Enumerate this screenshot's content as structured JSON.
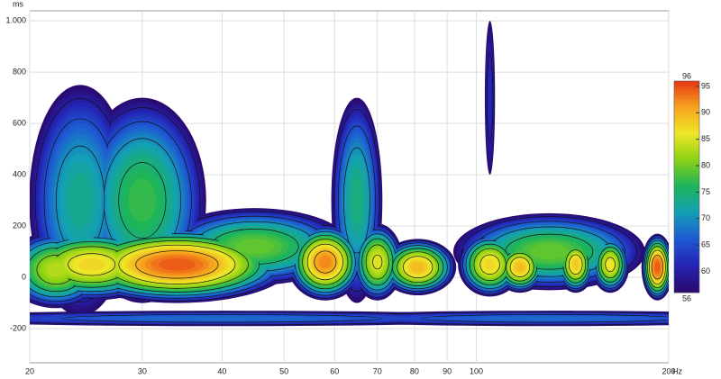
{
  "chart_data": {
    "type": "spectrogram",
    "x_unit": "Hz",
    "y_unit": "ms",
    "xscale": "log",
    "xlim": [
      20,
      200
    ],
    "xticks": [
      20,
      30,
      40,
      50,
      60,
      70,
      80,
      90,
      100,
      200
    ],
    "ylim": [
      -333,
      1039
    ],
    "yticks": [
      -200,
      0,
      200,
      400,
      600,
      800,
      {
        "value": 1000,
        "label": "1.000"
      }
    ],
    "grid": true,
    "zlim": [
      56,
      96
    ],
    "zticks": [
      60,
      65,
      70,
      75,
      80,
      85,
      90,
      95
    ],
    "colorscale": [
      "#2a0a6e",
      "#2424b4",
      "#1e5ad2",
      "#14a0b4",
      "#1eb45a",
      "#8cd214",
      "#f0e628",
      "#f5a01e",
      "#e63214"
    ],
    "contour_step": 5,
    "peaks": {
      "x": [
        40,
        130,
        30,
        24,
        65,
        105,
        22,
        25,
        45,
        130,
        34,
        58,
        70,
        81,
        105,
        117,
        143,
        162,
        192
      ],
      "y": [
        -160,
        -160,
        300,
        300,
        300,
        700,
        30,
        50,
        120,
        100,
        50,
        60,
        60,
        40,
        50,
        40,
        50,
        50,
        40
      ],
      "values": [
        68,
        68,
        78,
        74,
        75,
        62,
        84,
        88,
        80,
        80,
        95,
        93,
        86,
        90,
        88,
        90,
        89,
        87,
        95
      ],
      "width": [
        0.5,
        0.4,
        0.1,
        0.08,
        0.04,
        0.008,
        0.08,
        0.12,
        0.15,
        0.15,
        0.18,
        0.06,
        0.04,
        0.06,
        0.05,
        0.04,
        0.03,
        0.03,
        0.025
      ],
      "height": [
        60,
        60,
        800,
        900,
        800,
        600,
        300,
        280,
        300,
        300,
        300,
        300,
        300,
        220,
        250,
        200,
        220,
        220,
        260
      ]
    }
  }
}
